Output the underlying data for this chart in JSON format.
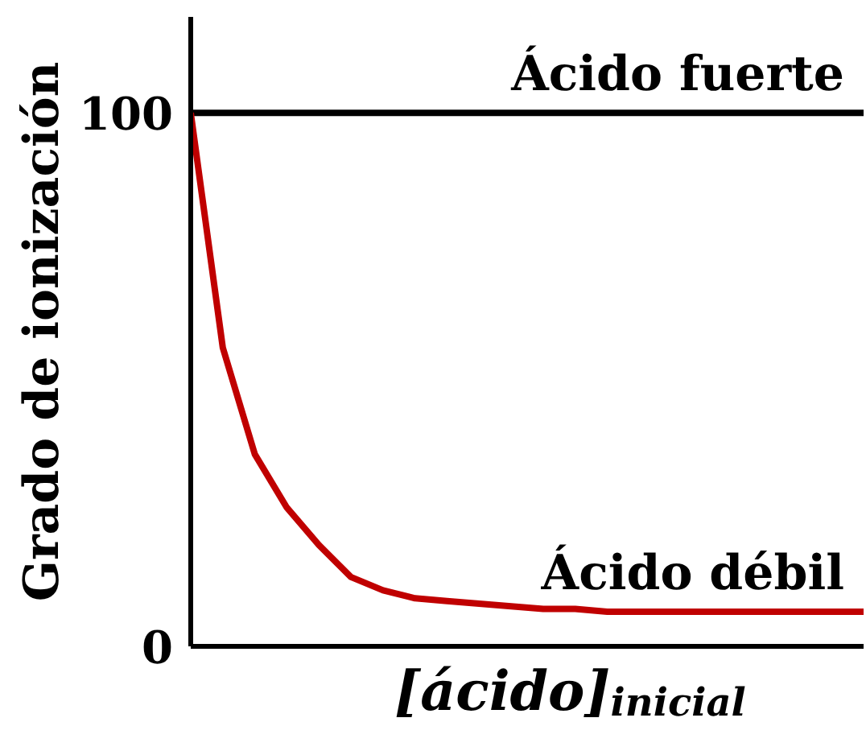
{
  "chart_data": {
    "type": "line",
    "ylabel": "Grado de ionización",
    "xlabel": "[ácido]$_{inicial}$",
    "categories": [
      null,
      null,
      null,
      null,
      null,
      null,
      null,
      null,
      null,
      null,
      null,
      null,
      null,
      null,
      null,
      null,
      null,
      null,
      null,
      null,
      null,
      null
    ],
    "series": [
      {
        "name": "Ácido fuerte",
        "color": "#000000",
        "values": [
          100,
          100,
          100,
          100,
          100,
          100,
          100,
          100,
          100,
          100,
          100,
          100,
          100,
          100,
          100,
          100,
          100,
          100,
          100,
          100,
          100,
          100
        ]
      },
      {
        "name": "Ácido débil",
        "color": "#c00000",
        "values": [
          100,
          56,
          36,
          26,
          19,
          13,
          10.5,
          9,
          8.5,
          8,
          7.5,
          7,
          7,
          6.5,
          6.5,
          6.5,
          6.5,
          6.5,
          6.5,
          6.5,
          6.5,
          6.5
        ]
      }
    ],
    "ylim": [
      0,
      118
    ],
    "yticks": [
      0,
      100
    ],
    "tick_labels": "y",
    "marker": "none",
    "line_style": "solid"
  }
}
